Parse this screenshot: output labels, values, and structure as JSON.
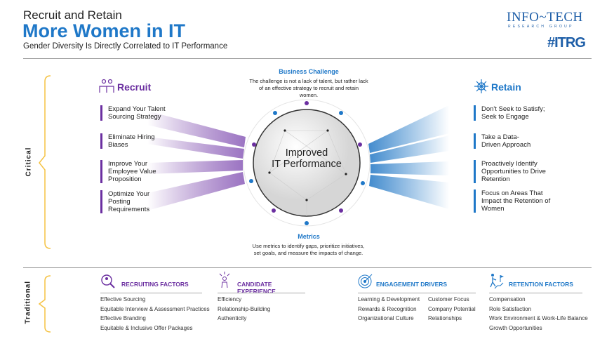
{
  "header": {
    "title_line1": "Recruit and Retain",
    "title_line2": "More Women in IT",
    "subtitle": "Gender Diversity Is Directly Correlated to IT Performance"
  },
  "logo": {
    "name": "INFO~TECH",
    "tagline": "RESEARCH GROUP",
    "hashtag": "#ITRG"
  },
  "colors": {
    "purple": "#6b2fa0",
    "blue": "#1f78c8",
    "yellow": "#f5c242"
  },
  "critical": {
    "label": "Critical",
    "recruit": {
      "title": "Recruit",
      "icon": "people-icon",
      "items": [
        "Expand Your Talent Sourcing Strategy",
        "Eliminate Hiring Biases",
        "Improve Your Employee Value Proposition",
        "Optimize Your Posting Requirements"
      ]
    },
    "retain": {
      "title": "Retain",
      "icon": "network-person-icon",
      "items": [
        "Don't Seek to Satisfy; Seek to Engage",
        "Take a Data-Driven Approach",
        "Proactively Identify Opportunities to Drive Retention",
        "Focus on Areas That Impact the Retention of Women"
      ]
    },
    "business_challenge": {
      "title": "Business Challenge",
      "text": "The challenge is not a lack of talent, but rather lack of an effective strategy to recruit and retain women."
    },
    "center": {
      "line1": "Improved",
      "line2": "IT Performance"
    },
    "metrics": {
      "title": "Metrics",
      "text": "Use metrics to identify gaps, prioritize initiatives, set goals, and measure the impacts of change."
    }
  },
  "traditional": {
    "label": "Traditional",
    "columns": [
      {
        "title": "RECRUITING FACTORS",
        "icon": "search-person-icon",
        "color": "#6b2fa0",
        "items": [
          "Effective Sourcing",
          "Equitable Interview & Assessment Practices",
          "Effective Branding",
          "Equitable & Inclusive Offer Packages"
        ]
      },
      {
        "title": "CANDIDATE EXPERIENCE",
        "icon": "person-sparkle-icon",
        "color": "#6b2fa0",
        "items": [
          "Efficiency",
          "Relationship-Building",
          "Authenticity"
        ]
      },
      {
        "title": "ENGAGEMENT DRIVERS",
        "icon": "target-icon",
        "color": "#1f78c8",
        "items": [
          "Learning & Development",
          "Rewards & Recognition",
          "Organizational Culture"
        ],
        "items2": [
          "Customer Focus",
          "Company Potential",
          "Relationships"
        ]
      },
      {
        "title": "RETENTION FACTORS",
        "icon": "climber-flag-icon",
        "color": "#1f78c8",
        "items": [
          "Compensation",
          "Role Satisfaction",
          "Work Environment & Work-Life Balance",
          "Growth Opportunities"
        ]
      }
    ]
  }
}
